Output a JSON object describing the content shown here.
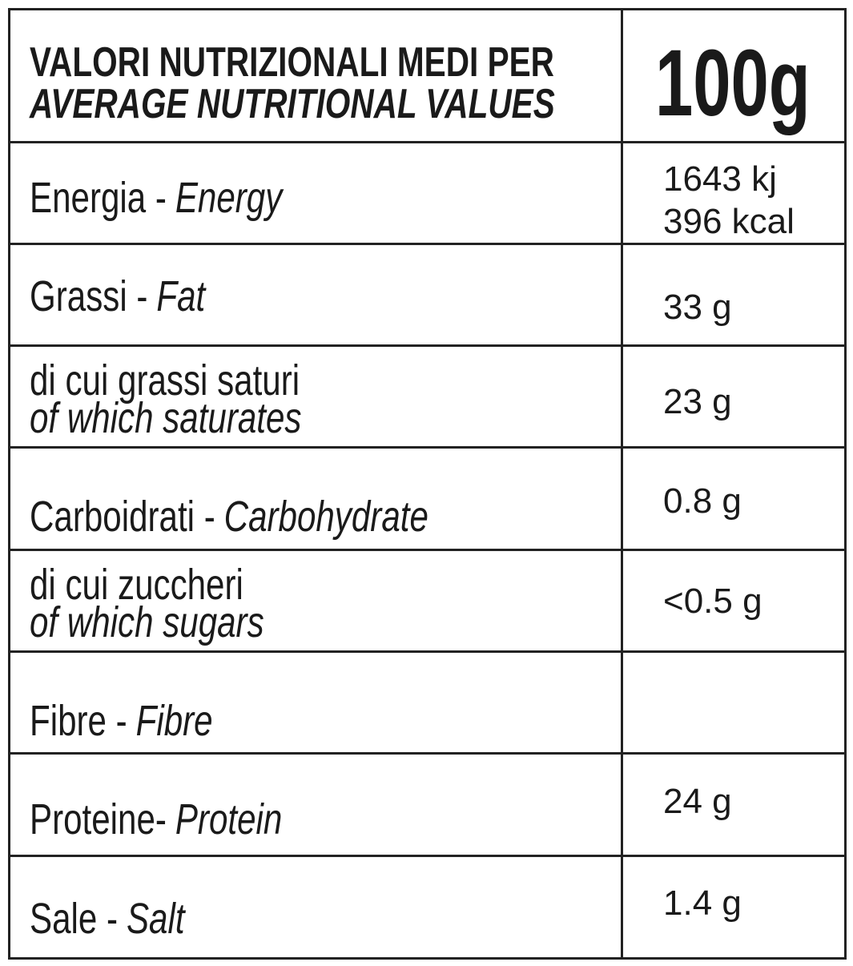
{
  "header": {
    "title": "VALORI NUTRIZIONALI MEDI PER",
    "subtitle": "AVERAGE NUTRITIONAL VALUES",
    "per": "100g"
  },
  "rows": [
    {
      "label": "Energia -",
      "label_en": "Energy",
      "values": [
        "1643 kj",
        "396 kcal"
      ]
    },
    {
      "label": "Grassi -",
      "label_en": "Fat",
      "values": [
        "33 g"
      ]
    },
    {
      "label": "di cui grassi saturi",
      "label_en": "of which saturates",
      "values": [
        "23 g"
      ]
    },
    {
      "label": "Carboidrati -",
      "label_en": "Carbohydrate",
      "values": [
        "0.8 g"
      ]
    },
    {
      "label": "di cui zuccheri",
      "label_en": "of which sugars",
      "values": [
        "<0.5 g"
      ]
    },
    {
      "label": "Fibre -",
      "label_en": "Fibre",
      "values": []
    },
    {
      "label": "Proteine-",
      "label_en": "Protein",
      "values": [
        "24 g"
      ]
    },
    {
      "label": "Sale -",
      "label_en": "Salt",
      "values": [
        "1.4 g"
      ]
    }
  ]
}
